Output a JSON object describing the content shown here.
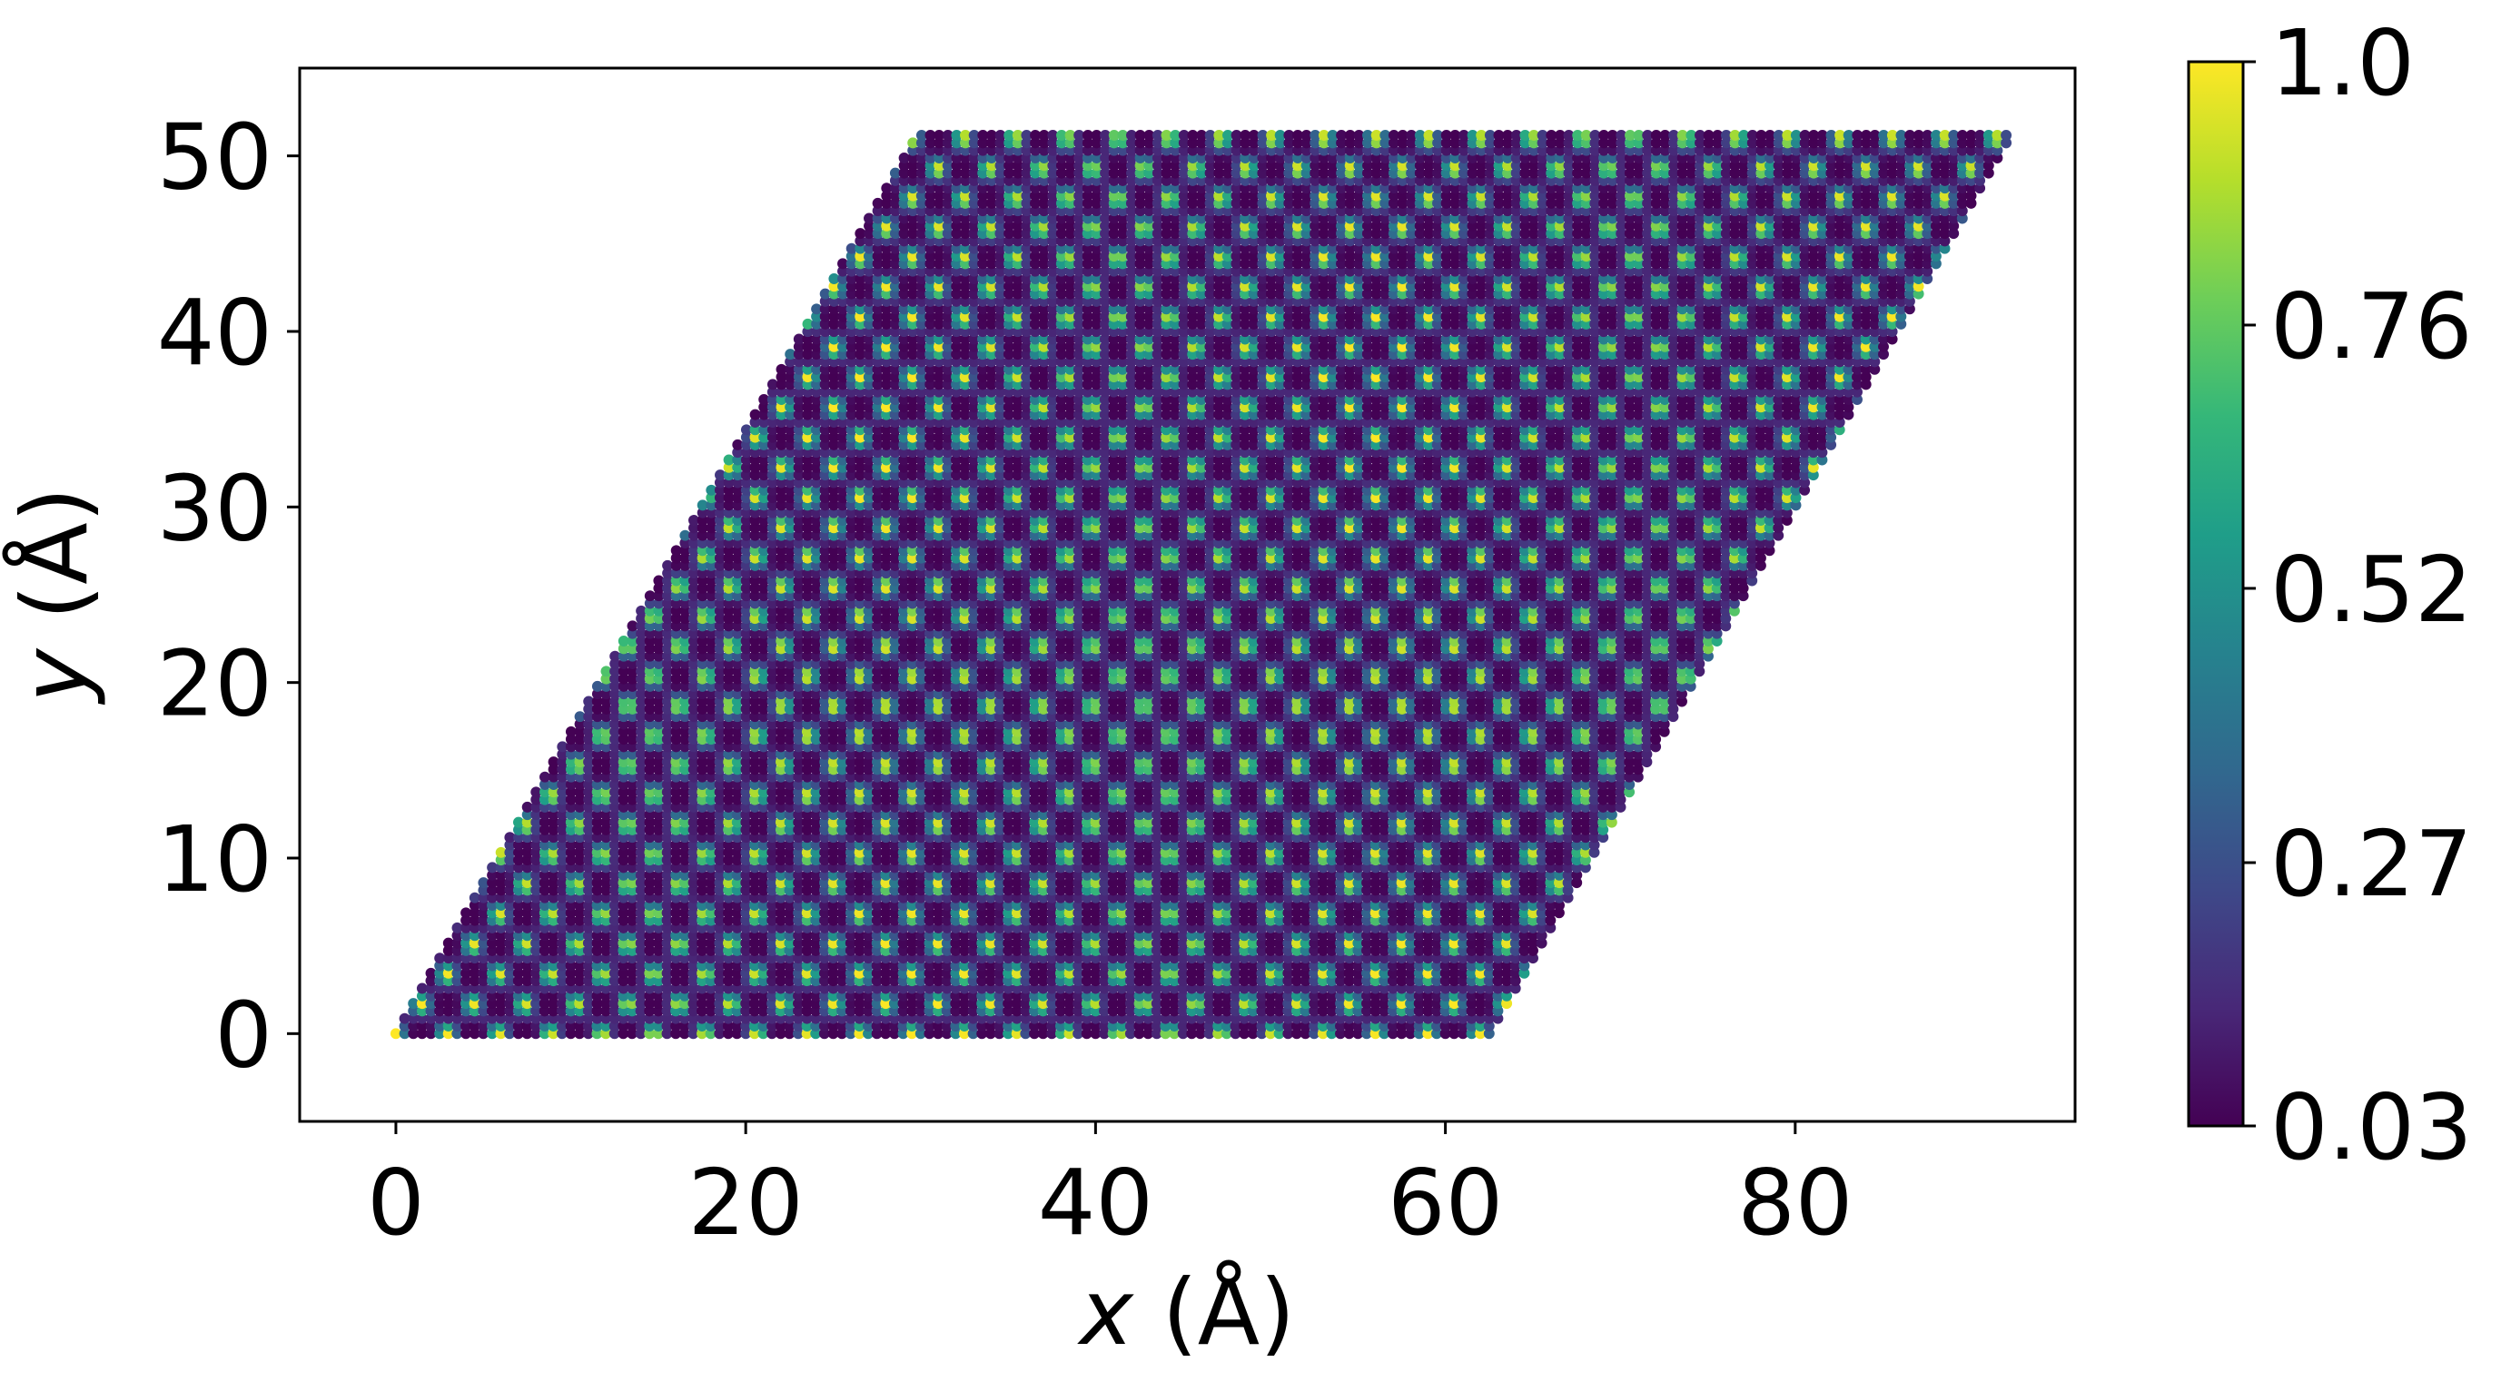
{
  "chart_data": {
    "type": "scatter",
    "title": "",
    "xlabel": "x (Å)",
    "ylabel": "y (Å)",
    "xlabel_parts": {
      "var": "x",
      "unit": " (Å)"
    },
    "ylabel_parts": {
      "var": "y",
      "unit": " (Å)"
    },
    "xlim": [
      -5.5,
      96
    ],
    "ylim": [
      -5,
      55
    ],
    "xticks": [
      0,
      20,
      40,
      60,
      80
    ],
    "yticks": [
      0,
      10,
      20,
      30,
      40,
      50
    ],
    "xtick_labels": [
      "0",
      "20",
      "40",
      "60",
      "80"
    ],
    "ytick_labels": [
      "0",
      "10",
      "20",
      "30",
      "40",
      "50"
    ],
    "grid": false,
    "region": {
      "shape": "parallelogram",
      "corners": [
        [
          0,
          0
        ],
        [
          62.5,
          0
        ],
        [
          92,
          51.5
        ],
        [
          30,
          51.5
        ]
      ]
    },
    "pattern": {
      "lattice": "hexagonal",
      "period_x": 2.95,
      "period_y": 3.4,
      "point_spacing_x": 0.5,
      "point_spacing_y": 0.43
    },
    "colorbar": {
      "colormap": "viridis",
      "min": 0.03,
      "max": 1.0,
      "ticks": [
        0.03,
        0.27,
        0.52,
        0.76,
        1.0
      ],
      "tick_labels": [
        "0.03",
        "0.27",
        "0.52",
        "0.76",
        "1.0"
      ]
    },
    "colors": {
      "viridis": [
        "#440154",
        "#482878",
        "#3e4989",
        "#31688e",
        "#26828e",
        "#1f9e89",
        "#35b779",
        "#6ece58",
        "#b5de2b",
        "#fde725"
      ]
    }
  }
}
